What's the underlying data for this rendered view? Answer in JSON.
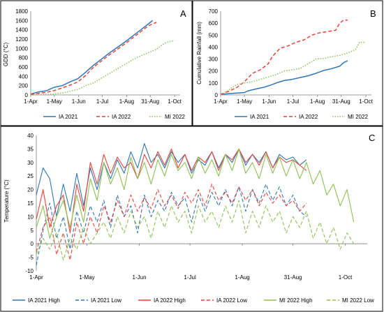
{
  "panels": [
    {
      "label": "A",
      "chart_data": {
        "type": "line",
        "ylabel": "GDD (°C)",
        "xlabel": "",
        "x_ticks": [
          "1-Apr",
          "1-May",
          "1-Jun",
          "1-Jul",
          "1-Aug",
          "31-Aug",
          "1-Oct"
        ],
        "x_tick_days": [
          0,
          30,
          61,
          91,
          122,
          152,
          183
        ],
        "ylim": [
          0,
          1800
        ],
        "y_ticks": [
          0,
          200,
          400,
          600,
          800,
          1000,
          1200,
          1400,
          1600,
          1800
        ],
        "legend_position": "bottom",
        "series": [
          {
            "name": "IA 2021",
            "color": "#2e75b6",
            "dash": "solid",
            "x": [
              0,
              10,
              20,
              30,
              40,
              50,
              60,
              70,
              80,
              90,
              100,
              110,
              120,
              130,
              140,
              150,
              155
            ],
            "y": [
              20,
              65,
              90,
              165,
              200,
              280,
              350,
              490,
              640,
              770,
              900,
              1020,
              1140,
              1270,
              1400,
              1530,
              1600
            ]
          },
          {
            "name": "IA 2022",
            "color": "#e8443a",
            "dash": "dash",
            "x": [
              0,
              10,
              20,
              30,
              40,
              50,
              60,
              70,
              80,
              90,
              100,
              110,
              120,
              130,
              140,
              150,
              160
            ],
            "y": [
              10,
              35,
              55,
              95,
              150,
              210,
              280,
              420,
              600,
              730,
              860,
              980,
              1100,
              1230,
              1360,
              1490,
              1560
            ]
          },
          {
            "name": "MI 2022",
            "color": "#8cc152",
            "dash": "dot",
            "x": [
              0,
              20,
              30,
              40,
              50,
              60,
              70,
              80,
              90,
              100,
              110,
              120,
              130,
              140,
              150,
              160,
              170,
              175,
              183
            ],
            "y": [
              0,
              10,
              20,
              40,
              80,
              120,
              200,
              260,
              360,
              460,
              560,
              660,
              760,
              840,
              910,
              980,
              1110,
              1140,
              1170
            ]
          }
        ]
      }
    },
    {
      "label": "B",
      "chart_data": {
        "type": "line",
        "ylabel": "Cumulative Rainfall (mm)",
        "xlabel": "",
        "x_ticks": [
          "1-Apr",
          "1-May",
          "1-Jun",
          "1-Jul",
          "1-Aug",
          "31-Aug",
          "1-Oct"
        ],
        "x_tick_days": [
          0,
          30,
          61,
          91,
          122,
          152,
          183
        ],
        "ylim": [
          0,
          700
        ],
        "y_ticks": [
          0,
          100,
          200,
          300,
          400,
          500,
          600,
          700
        ],
        "legend_position": "bottom",
        "series": [
          {
            "name": "IA 2021",
            "color": "#2e75b6",
            "dash": "solid",
            "x": [
              0,
              10,
              20,
              30,
              35,
              45,
              55,
              62,
              70,
              80,
              90,
              100,
              110,
              120,
              130,
              140,
              150,
              155,
              160
            ],
            "y": [
              5,
              10,
              15,
              20,
              35,
              50,
              65,
              80,
              100,
              120,
              130,
              145,
              160,
              180,
              205,
              220,
              240,
              270,
              285
            ]
          },
          {
            "name": "IA 2022",
            "color": "#e8443a",
            "dash": "dash",
            "x": [
              0,
              10,
              20,
              30,
              40,
              50,
              60,
              65,
              75,
              85,
              95,
              105,
              115,
              125,
              135,
              145,
              150,
              155,
              160
            ],
            "y": [
              5,
              30,
              60,
              110,
              180,
              210,
              260,
              320,
              390,
              410,
              440,
              460,
              500,
              520,
              530,
              540,
              600,
              625,
              625
            ]
          },
          {
            "name": "MI 2022",
            "color": "#8cc152",
            "dash": "dot",
            "x": [
              0,
              10,
              20,
              30,
              40,
              50,
              60,
              70,
              80,
              90,
              100,
              110,
              120,
              130,
              140,
              150,
              160,
              170,
              175,
              183
            ],
            "y": [
              0,
              40,
              85,
              100,
              110,
              130,
              150,
              170,
              200,
              210,
              220,
              260,
              300,
              305,
              320,
              330,
              350,
              380,
              440,
              440
            ]
          }
        ]
      }
    },
    {
      "label": "C",
      "chart_data": {
        "type": "line",
        "ylabel": "Temperature (°C)",
        "xlabel": "",
        "x_ticks": [
          "1-Apr",
          "1-May",
          "1-Jun",
          "1-Jul",
          "1-Aug",
          "31-Aug",
          "1-Oct"
        ],
        "x_tick_days": [
          0,
          30,
          61,
          91,
          122,
          152,
          183
        ],
        "ylim": [
          -10,
          40
        ],
        "y_ticks": [
          -10,
          -5,
          0,
          5,
          10,
          15,
          20,
          25,
          30,
          35,
          40
        ],
        "legend_position": "bottom",
        "series": [
          {
            "name": "IA 2021 High",
            "color": "#2e75b6",
            "dash": "solid",
            "x": [
              0,
              4,
              8,
              12,
              16,
              20,
              24,
              28,
              32,
              36,
              40,
              44,
              48,
              52,
              56,
              60,
              64,
              68,
              72,
              76,
              80,
              84,
              88,
              92,
              96,
              100,
              104,
              108,
              112,
              116,
              120,
              124,
              128,
              132,
              136,
              140,
              144,
              148,
              152,
              156,
              160
            ],
            "y": [
              18,
              28,
              24,
              10,
              22,
              12,
              26,
              14,
              28,
              20,
              30,
              24,
              31,
              26,
              34,
              28,
              37,
              30,
              33,
              28,
              34,
              30,
              33,
              26,
              31,
              29,
              34,
              28,
              33,
              30,
              35,
              29,
              33,
              30,
              34,
              28,
              33,
              31,
              32,
              29,
              31
            ]
          },
          {
            "name": "IA 2021 Low",
            "color": "#2e75b6",
            "dash": "dash",
            "x": [
              0,
              4,
              8,
              12,
              16,
              20,
              24,
              28,
              32,
              36,
              40,
              44,
              48,
              52,
              56,
              60,
              64,
              68,
              72,
              76,
              80,
              84,
              88,
              92,
              96,
              100,
              104,
              108,
              112,
              116,
              120,
              124,
              128,
              132,
              136,
              140,
              144,
              148,
              152,
              156,
              160
            ],
            "y": [
              -8,
              5,
              15,
              2,
              10,
              -2,
              12,
              4,
              14,
              8,
              16,
              6,
              18,
              10,
              14,
              4,
              18,
              10,
              16,
              12,
              19,
              14,
              17,
              8,
              18,
              12,
              19,
              14,
              20,
              14,
              21,
              12,
              20,
              15,
              22,
              16,
              21,
              14,
              18,
              12,
              10
            ]
          },
          {
            "name": "IA 2022 High",
            "color": "#e8443a",
            "dash": "solid",
            "x": [
              0,
              4,
              8,
              12,
              16,
              20,
              24,
              28,
              32,
              36,
              40,
              44,
              48,
              52,
              56,
              60,
              64,
              68,
              72,
              76,
              80,
              84,
              88,
              92,
              96,
              100,
              104,
              108,
              112,
              116,
              120,
              124,
              128,
              132,
              136,
              140,
              144,
              148,
              152,
              156,
              160
            ],
            "y": [
              9,
              20,
              6,
              14,
              18,
              4,
              22,
              12,
              30,
              22,
              33,
              26,
              32,
              28,
              30,
              24,
              33,
              28,
              34,
              29,
              35,
              28,
              33,
              27,
              32,
              30,
              34,
              27,
              33,
              31,
              35,
              30,
              33,
              29,
              34,
              28,
              32,
              30,
              31,
              29,
              27
            ]
          },
          {
            "name": "IA 2022 Low",
            "color": "#e8443a",
            "dash": "dash",
            "x": [
              0,
              4,
              8,
              12,
              16,
              20,
              24,
              28,
              32,
              36,
              40,
              44,
              48,
              52,
              56,
              60,
              64,
              68,
              72,
              76,
              80,
              84,
              88,
              92,
              96,
              100,
              104,
              108,
              112,
              116,
              120,
              124,
              128,
              132,
              136,
              140,
              144,
              148,
              152,
              156,
              160
            ],
            "y": [
              -3,
              6,
              10,
              -4,
              4,
              -6,
              8,
              0,
              10,
              4,
              14,
              8,
              16,
              10,
              18,
              12,
              17,
              13,
              20,
              14,
              18,
              13,
              19,
              15,
              20,
              14,
              22,
              16,
              19,
              15,
              21,
              16,
              20,
              14,
              19,
              15,
              18,
              14,
              16,
              12,
              15
            ]
          },
          {
            "name": "MI 2022 High",
            "color": "#8cc152",
            "dash": "solid",
            "x": [
              0,
              4,
              8,
              12,
              16,
              20,
              24,
              28,
              32,
              36,
              40,
              44,
              48,
              52,
              56,
              60,
              64,
              68,
              72,
              76,
              80,
              84,
              88,
              92,
              96,
              100,
              104,
              108,
              112,
              116,
              120,
              124,
              128,
              132,
              136,
              140,
              144,
              148,
              152,
              156,
              160,
              164,
              168,
              172,
              176,
              180,
              184,
              188
            ],
            "y": [
              6,
              14,
              2,
              10,
              16,
              6,
              18,
              8,
              24,
              16,
              30,
              22,
              28,
              20,
              32,
              24,
              30,
              22,
              31,
              25,
              33,
              27,
              30,
              24,
              32,
              26,
              31,
              25,
              33,
              27,
              35,
              26,
              30,
              24,
              33,
              26,
              32,
              25,
              31,
              24,
              30,
              22,
              27,
              18,
              22,
              14,
              20,
              8
            ]
          },
          {
            "name": "MI 2022 Low",
            "color": "#8cc152",
            "dash": "dash",
            "x": [
              0,
              4,
              8,
              12,
              16,
              20,
              24,
              28,
              32,
              36,
              40,
              44,
              48,
              52,
              56,
              60,
              64,
              68,
              72,
              76,
              80,
              84,
              88,
              92,
              96,
              100,
              104,
              108,
              112,
              116,
              120,
              124,
              128,
              132,
              136,
              140,
              144,
              148,
              152,
              156,
              160,
              164,
              168,
              172,
              176,
              180,
              184,
              188
            ],
            "y": [
              -4,
              2,
              -2,
              4,
              -6,
              2,
              -2,
              6,
              0,
              4,
              8,
              2,
              10,
              4,
              12,
              6,
              10,
              2,
              12,
              6,
              14,
              8,
              12,
              4,
              14,
              8,
              12,
              6,
              14,
              8,
              16,
              4,
              12,
              6,
              14,
              8,
              12,
              4,
              10,
              6,
              12,
              2,
              8,
              0,
              6,
              -2,
              4,
              0
            ]
          }
        ]
      }
    }
  ]
}
